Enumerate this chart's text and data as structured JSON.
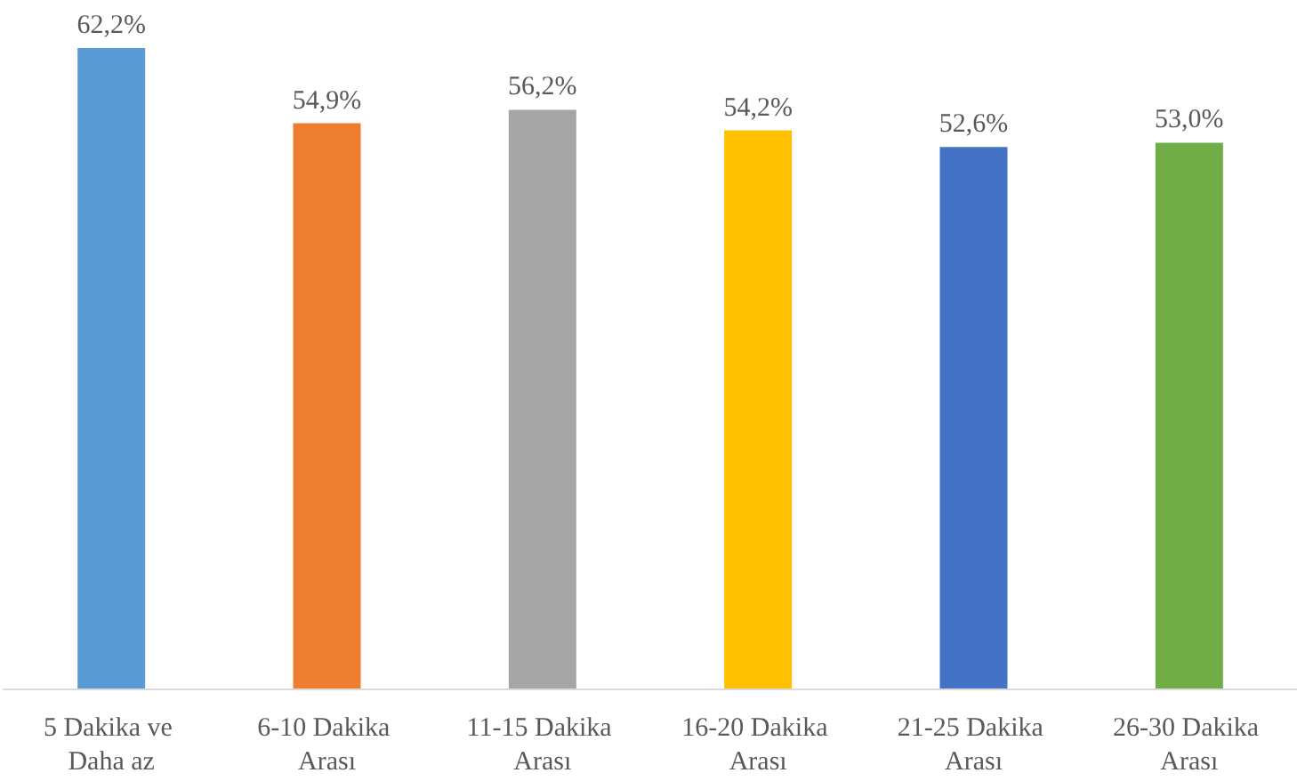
{
  "chart_data": {
    "type": "bar",
    "categories": [
      "5 Dakika ve Daha az",
      "6-10 Dakika Arası",
      "11-15 Dakika Arası",
      "16-20 Dakika Arası",
      "21-25 Dakika Arası",
      "26-30 Dakika Arası"
    ],
    "values": [
      62.2,
      54.9,
      56.2,
      54.2,
      52.6,
      53.0
    ],
    "colors": [
      "#5b9bd5",
      "#ed7d31",
      "#a5a5a5",
      "#ffc000",
      "#4472c4",
      "#70ad47"
    ],
    "value_labels": [
      "62,2%",
      "54,9%",
      "56,2%",
      "54,2%",
      "52,6%",
      "53,0%"
    ]
  }
}
